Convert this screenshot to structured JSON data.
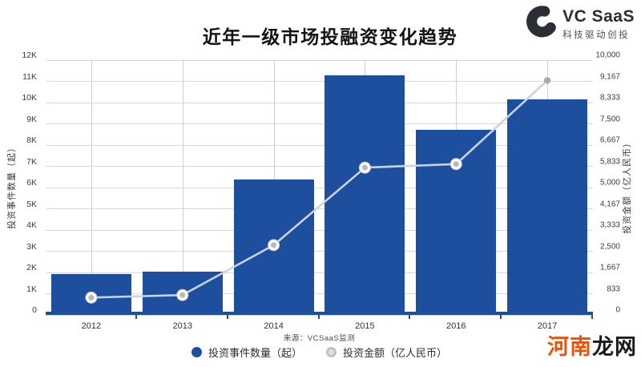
{
  "logo": {
    "name": "VC SaaS",
    "tagline": "科技驱动创投"
  },
  "watermark": {
    "part1": "河南",
    "part2": "龙网"
  },
  "colors": {
    "bar_blue": "#1e4e9e",
    "line": "#c9d3e7",
    "dot_fill": "#b7babd",
    "dot_ring": "#cccccc",
    "dot_last": "#a9acae",
    "grid_h": "#d8d8d8",
    "grid_v": "#cfcfcf",
    "watermark_orange": "#e8540e",
    "logo_dark": "#2b2e34"
  },
  "chart_data": {
    "type": "bar",
    "title": "近年一级市场投融资变化趋势",
    "source": "来源：VCSaaS监测",
    "categories": [
      "2012",
      "2013",
      "2014",
      "2015",
      "2016",
      "2017"
    ],
    "series": [
      {
        "name": "投资事件数量（起）",
        "type": "bar",
        "axis": "left",
        "color": "#1e4e9e",
        "values": [
          1940,
          2030,
          6380,
          11270,
          8700,
          10140
        ]
      },
      {
        "name": "投资金额（亿人民币）",
        "type": "line",
        "axis": "right",
        "color": "#c9d3e7",
        "values": [
          680,
          780,
          2740,
          5780,
          5920,
          9200
        ]
      }
    ],
    "left_axis": {
      "label": "投资事件数量（起）",
      "min": 0,
      "max": 12000,
      "ticks": [
        "12K",
        "11K",
        "10K",
        "9K",
        "8K",
        "7K",
        "6K",
        "5K",
        "4K",
        "3K",
        "2K",
        "1K",
        "0"
      ]
    },
    "right_axis": {
      "label": "投资金额（亿人民币）",
      "min": 0,
      "max": 10000,
      "ticks": [
        "10,000",
        "9,167",
        "8,333",
        "7,500",
        "6,667",
        "5,833",
        "5,000",
        "4,167",
        "3,333",
        "2,500",
        "1,667",
        "833",
        "0"
      ]
    },
    "grid": true,
    "legend_position": "bottom"
  }
}
